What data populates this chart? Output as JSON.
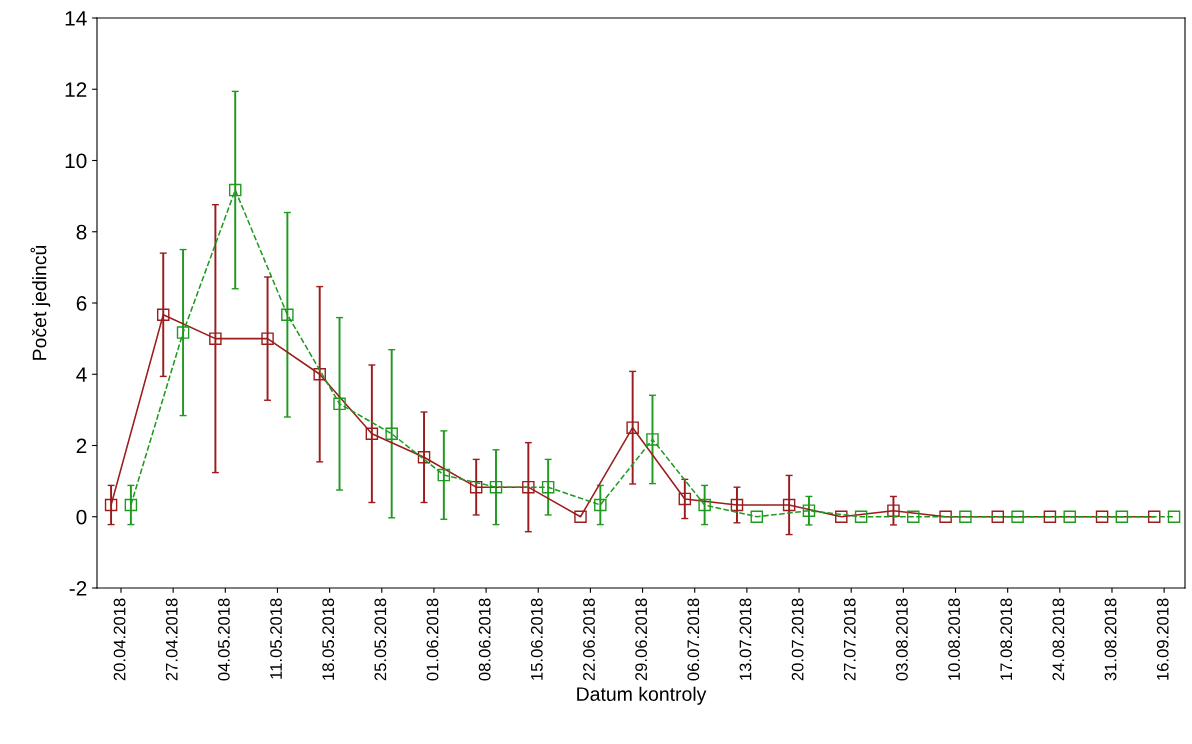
{
  "chart_data": {
    "type": "line",
    "xlabel": "Datum kontroly",
    "ylabel": "Počet jedinců",
    "categories": [
      "20.04.2018",
      "27.04.2018",
      "04.05.2018",
      "11.05.2018",
      "18.05.2018",
      "25.05.2018",
      "01.06.2018",
      "08.06.2018",
      "15.06.2018",
      "22.06.2018",
      "29.06.2018",
      "06.07.2018",
      "13.07.2018",
      "20.07.2018",
      "27.07.2018",
      "03.08.2018",
      "10.08.2018",
      "17.08.2018",
      "24.08.2018",
      "31.08.2018",
      "16.09.2018"
    ],
    "ylim": [
      -2,
      14
    ],
    "yticks": [
      -2,
      0,
      2,
      4,
      6,
      8,
      10,
      12,
      14
    ],
    "grid": false,
    "marker": "square",
    "series": [
      {
        "color": "#9b1c1c",
        "line_style": "solid",
        "values": [
          0.33,
          5.67,
          5.0,
          5.0,
          4.0,
          2.33,
          1.67,
          0.83,
          0.83,
          0,
          2.5,
          0.5,
          0.33,
          0.33,
          0,
          0.17,
          0,
          0,
          0,
          0,
          0
        ],
        "errors": [
          0.55,
          1.73,
          3.76,
          1.73,
          2.46,
          1.93,
          1.27,
          0.78,
          1.25,
          null,
          1.58,
          0.55,
          0.5,
          0.83,
          null,
          0.4,
          null,
          null,
          null,
          null,
          null
        ]
      },
      {
        "color": "#1e9a1e",
        "line_style": "dashed",
        "values": [
          0.33,
          5.17,
          9.17,
          5.67,
          3.17,
          2.33,
          1.17,
          0.83,
          0.83,
          0.33,
          2.17,
          0.33,
          0,
          0.17,
          0,
          0,
          0,
          0,
          0,
          0,
          0
        ],
        "errors": [
          0.55,
          2.33,
          2.77,
          2.87,
          2.42,
          2.36,
          1.24,
          1.05,
          0.78,
          0.55,
          1.24,
          0.55,
          null,
          0.4,
          null,
          null,
          null,
          null,
          null,
          null,
          null
        ]
      }
    ]
  }
}
